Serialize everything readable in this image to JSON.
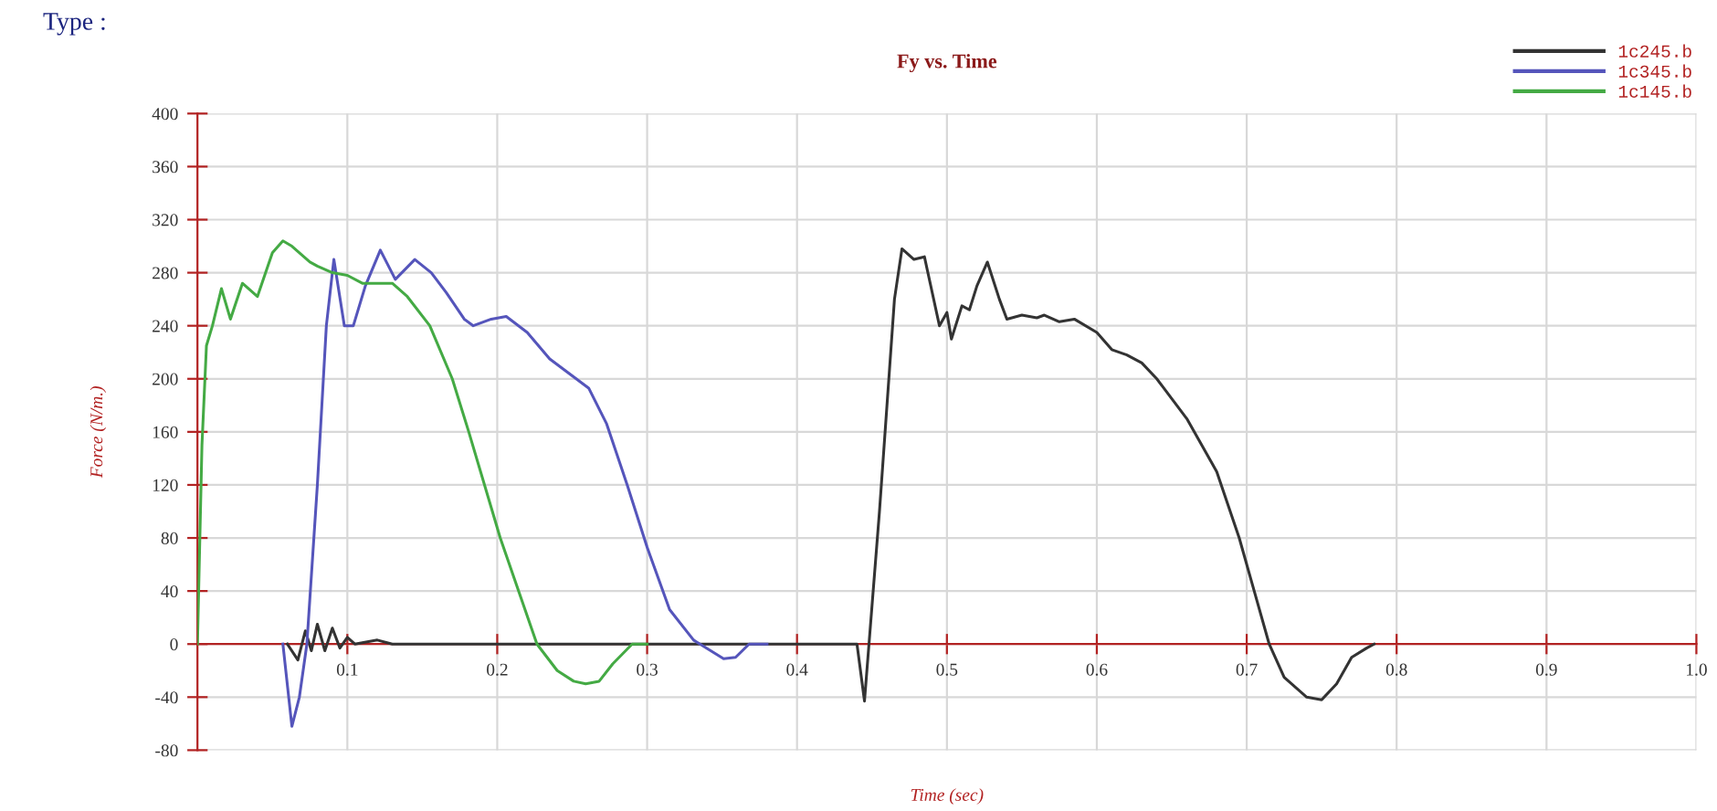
{
  "chart_data": {
    "type": "line",
    "title": "Fy vs. Time",
    "xlabel": "Time (sec)",
    "ylabel": "Force (N/m.)",
    "annotations": [
      "Type :"
    ],
    "xlim": [
      0,
      1.0
    ],
    "ylim": [
      -80,
      400
    ],
    "xticks": [
      {
        "value": 0.1,
        "label": "0.1"
      },
      {
        "value": 0.2,
        "label": "0.2"
      },
      {
        "value": 0.3,
        "label": "0.3"
      },
      {
        "value": 0.4,
        "label": "0.4"
      },
      {
        "value": 0.5,
        "label": "0.5"
      },
      {
        "value": 0.6,
        "label": "0.6"
      },
      {
        "value": 0.7,
        "label": "0.7"
      },
      {
        "value": 0.8,
        "label": "0.8"
      },
      {
        "value": 0.9,
        "label": "0.9"
      },
      {
        "value": 1.0,
        "label": "1.0"
      }
    ],
    "yticks": [
      -80,
      -40,
      0,
      40,
      80,
      120,
      160,
      200,
      240,
      280,
      320,
      360,
      400
    ],
    "grid": true,
    "legend": "top right",
    "line_style": "solid",
    "marker": "none",
    "series": [
      {
        "name": "1c245.b",
        "color": "#333333",
        "x": [
          0.06,
          0.067,
          0.072,
          0.076,
          0.08,
          0.085,
          0.09,
          0.095,
          0.1,
          0.105,
          0.12,
          0.13,
          0.15,
          0.3,
          0.44,
          0.445,
          0.455,
          0.465,
          0.47,
          0.478,
          0.485,
          0.495,
          0.5,
          0.503,
          0.51,
          0.515,
          0.52,
          0.527,
          0.535,
          0.54,
          0.55,
          0.56,
          0.565,
          0.575,
          0.585,
          0.6,
          0.61,
          0.62,
          0.63,
          0.64,
          0.66,
          0.68,
          0.695,
          0.705,
          0.715,
          0.725,
          0.74,
          0.75,
          0.76,
          0.77,
          0.78,
          0.785
        ],
        "values": [
          0,
          -12,
          10,
          -5,
          15,
          -5,
          12,
          -3,
          5,
          0,
          3,
          0,
          0,
          0,
          0,
          -43,
          100,
          260,
          298,
          290,
          292,
          240,
          250,
          230,
          255,
          252,
          270,
          288,
          260,
          245,
          248,
          246,
          248,
          243,
          245,
          235,
          222,
          218,
          212,
          200,
          170,
          130,
          80,
          40,
          0,
          -25,
          -40,
          -42,
          -30,
          -10,
          -3,
          0
        ]
      },
      {
        "name": "1c345.b",
        "color": "#5555bb",
        "x": [
          0.057,
          0.063,
          0.068,
          0.073,
          0.08,
          0.086,
          0.091,
          0.098,
          0.104,
          0.112,
          0.122,
          0.132,
          0.145,
          0.156,
          0.166,
          0.178,
          0.184,
          0.196,
          0.206,
          0.22,
          0.235,
          0.261,
          0.273,
          0.287,
          0.3,
          0.315,
          0.331,
          0.351,
          0.359,
          0.368,
          0.38
        ],
        "values": [
          0,
          -62,
          -40,
          0,
          120,
          240,
          290,
          240,
          240,
          270,
          297,
          275,
          290,
          280,
          265,
          245,
          240,
          245,
          247,
          235,
          215,
          193,
          166,
          119,
          73,
          26,
          3,
          -11,
          -10,
          0,
          0
        ]
      },
      {
        "name": "1c145.b",
        "color": "#44aa44",
        "x": [
          0.0,
          0.003,
          0.006,
          0.01,
          0.016,
          0.022,
          0.03,
          0.04,
          0.05,
          0.057,
          0.063,
          0.075,
          0.08,
          0.09,
          0.1,
          0.11,
          0.13,
          0.14,
          0.155,
          0.17,
          0.181,
          0.202,
          0.2265,
          0.24,
          0.251,
          0.259,
          0.268,
          0.277,
          0.29,
          0.3
        ],
        "values": [
          0,
          150,
          225,
          240,
          268,
          245,
          272,
          262,
          295,
          304,
          300,
          288,
          285,
          280,
          278,
          272,
          272,
          262,
          240,
          200,
          160,
          80,
          0,
          -20,
          -28,
          -30,
          -28,
          -15,
          0,
          0
        ]
      }
    ]
  }
}
